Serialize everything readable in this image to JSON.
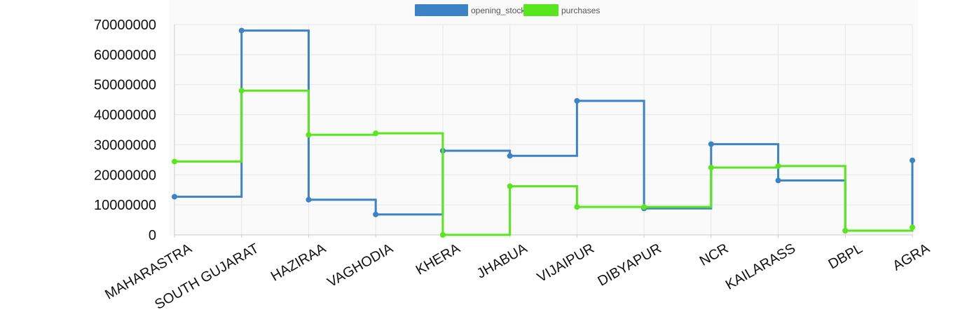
{
  "chart_data": {
    "type": "line",
    "step": true,
    "categories": [
      "MAHARASTRA",
      "SOUTH GUJARAT",
      "HAZIRAA",
      "VAGHODIA",
      "KHERA",
      "JHABUA",
      "VIJAIPUR",
      "DIBYAPUR",
      "NCR",
      "KAILARASS",
      "DBPL",
      "AGRA"
    ],
    "series": [
      {
        "name": "opening_stock",
        "color": "#3c82c6",
        "values": [
          12700000,
          68000000,
          11700000,
          6800000,
          28000000,
          26300000,
          44600000,
          8800000,
          30200000,
          18100000,
          1400000,
          24800000
        ]
      },
      {
        "name": "purchases",
        "color": "#58e61c",
        "values": [
          24400000,
          48000000,
          33300000,
          33800000,
          0,
          16200000,
          9300000,
          9300000,
          22400000,
          22900000,
          1400000,
          2500000
        ]
      }
    ],
    "y_ticks": [
      "0",
      "10000000",
      "20000000",
      "30000000",
      "40000000",
      "50000000",
      "60000000",
      "70000000"
    ],
    "ylim": [
      0,
      70000000
    ],
    "grid": true,
    "legend_position": "top-center"
  }
}
